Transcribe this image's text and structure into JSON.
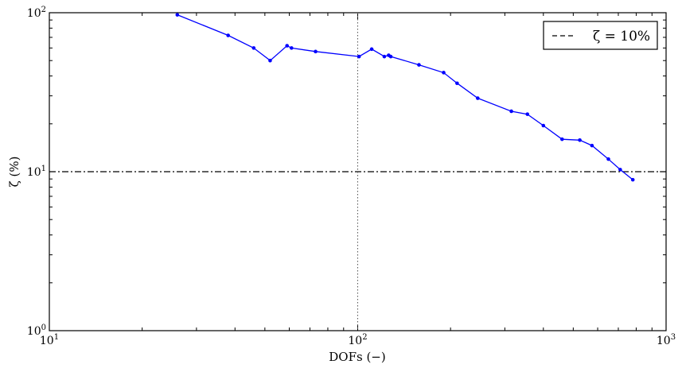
{
  "chart_data": {
    "type": "line",
    "xscale": "log",
    "yscale": "log",
    "xlim": [
      10,
      1000
    ],
    "ylim": [
      1,
      100
    ],
    "xlabel": "DOFs (−)",
    "ylabel": "ζ (%)",
    "x_ticks": [
      {
        "value": 10,
        "base": "10",
        "exp": "1"
      },
      {
        "value": 100,
        "base": "10",
        "exp": "2"
      },
      {
        "value": 1000,
        "base": "10",
        "exp": "3"
      }
    ],
    "y_ticks": [
      {
        "value": 1,
        "base": "10",
        "exp": "0"
      },
      {
        "value": 10,
        "base": "10",
        "exp": "1"
      },
      {
        "value": 100,
        "base": "10",
        "exp": "2"
      }
    ],
    "series": [
      {
        "color": "#0000ff",
        "marker": "dot",
        "x": [
          26,
          38,
          46,
          52,
          59,
          61,
          73,
          101,
          111,
          122,
          126,
          128,
          158,
          190,
          210,
          245,
          315,
          355,
          400,
          460,
          525,
          575,
          650,
          710,
          780
        ],
        "y": [
          97,
          72,
          60,
          50,
          62,
          60,
          57,
          53,
          59,
          53,
          54,
          53,
          47,
          42,
          36,
          29,
          24,
          23,
          19.5,
          16,
          15.8,
          14.6,
          12,
          10.3,
          8.9
        ]
      }
    ],
    "reference_lines": [
      {
        "orientation": "horizontal",
        "value": 10,
        "style": "dashdot",
        "color": "#000000"
      },
      {
        "orientation": "vertical",
        "value": 100,
        "style": "dotted",
        "color": "#555555"
      }
    ],
    "legend": {
      "position": "top-right",
      "entries": [
        {
          "label": "ζ = 10%",
          "style": "dashed",
          "color": "#000000"
        }
      ]
    },
    "grid": false
  }
}
